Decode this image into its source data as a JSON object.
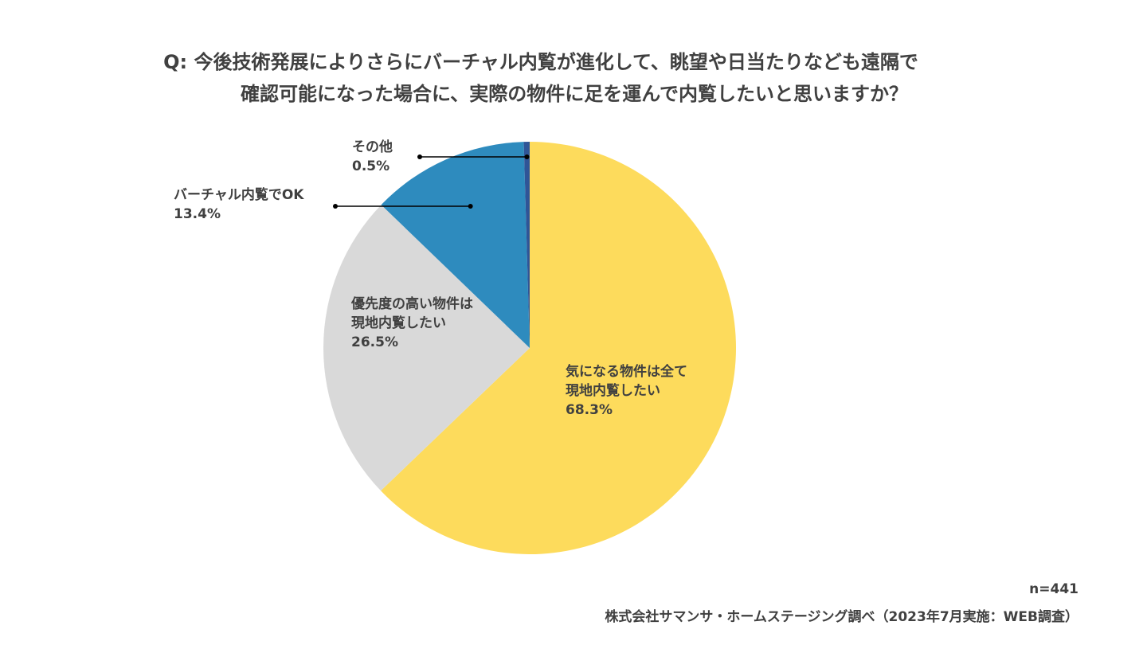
{
  "title": {
    "line1": "Q: 今後技術発展によりさらにバーチャル内覧が進化して、眺望や日当たりなども遠隔で",
    "line2": "確認可能になった場合に、実際の物件に足を運んで内覧したいと思いますか？"
  },
  "chart_data": {
    "type": "pie",
    "start": "12 o'clock",
    "direction": "clockwise",
    "slices": [
      {
        "label": "気になる物件は全て現地内覧したい",
        "value": 68.3,
        "value_label": "68.3%",
        "color": "#FDDB5C"
      },
      {
        "label": "優先度の高い物件は現地内覧したい",
        "value": 26.5,
        "value_label": "26.5%",
        "color": "#D9D9D9"
      },
      {
        "label": "バーチャル内覧でOK",
        "value": 13.4,
        "value_label": "13.4%",
        "color": "#2E8BBE"
      },
      {
        "label": "その他",
        "value": 0.5,
        "value_label": "0.5%",
        "color": "#2F5597"
      }
    ]
  },
  "labels": {
    "s1": {
      "line1": "気になる物件は全て",
      "line2": "現地内覧したい",
      "pct": "68.3%"
    },
    "s2": {
      "line1": "優先度の高い物件は",
      "line2": "現地内覧したい",
      "pct": "26.5%"
    },
    "s3": {
      "line1": "バーチャル内覧でOK",
      "pct": "13.4%"
    },
    "s4": {
      "line1": "その他",
      "pct": "0.5%"
    }
  },
  "footer": {
    "n": "n=441",
    "source": "株式会社サマンサ・ホームステージング調べ（2023年7月実施：WEB調査）"
  }
}
